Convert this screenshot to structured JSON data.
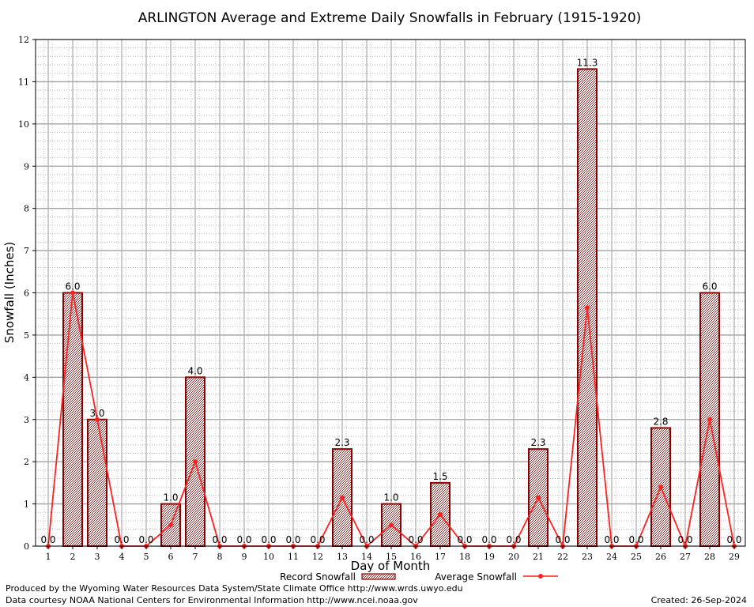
{
  "chart_data": {
    "type": "bar",
    "title": "ARLINGTON Average and Extreme Daily Snowfalls in February (1915-1920)",
    "xlabel": "Day of Month",
    "ylabel": "Snowfall (Inches)",
    "ylim": [
      0,
      12
    ],
    "yticks": [
      "0",
      "1",
      "2",
      "3",
      "4",
      "5",
      "6",
      "7",
      "8",
      "9",
      "10",
      "11",
      "12"
    ],
    "grid": true,
    "categories": [
      "1",
      "2",
      "3",
      "4",
      "5",
      "6",
      "7",
      "8",
      "9",
      "10",
      "11",
      "12",
      "13",
      "14",
      "15",
      "16",
      "17",
      "18",
      "19",
      "20",
      "21",
      "22",
      "23",
      "24",
      "25",
      "26",
      "27",
      "28",
      "29"
    ],
    "series": [
      {
        "name": "Record Snowfall",
        "type": "bar",
        "color": "#8b0000",
        "values": [
          0,
          6,
          3,
          0,
          0,
          1,
          4,
          0,
          0,
          0,
          0,
          0,
          2.3,
          0,
          1,
          0,
          1.5,
          0,
          0,
          0,
          2.3,
          0,
          11.3,
          0,
          0,
          2.8,
          0,
          6,
          0
        ],
        "labels": [
          "0.0",
          "6.0",
          "3.0",
          "0.0",
          "0.0",
          "1.0",
          "4.0",
          "0.0",
          "0.0",
          "0.0",
          "0.0",
          "0.0",
          "2.3",
          "0.0",
          "1.0",
          "0.0",
          "1.5",
          "0.0",
          "0.0",
          "0.0",
          "2.3",
          "0.0",
          "11.3",
          "0.0",
          "0.0",
          "2.8",
          "0.0",
          "6.0",
          "0.0"
        ]
      },
      {
        "name": "Average Snowfall",
        "type": "line",
        "color": "#ff2020",
        "values": [
          0,
          6,
          3,
          0,
          0,
          0.5,
          2,
          0,
          0,
          0,
          0,
          0,
          1.15,
          0,
          0.5,
          0,
          0.75,
          0,
          0,
          0,
          1.15,
          0,
          5.65,
          0,
          0,
          1.4,
          0,
          3,
          0
        ]
      }
    ],
    "legend": "bottom-center"
  },
  "footer": {
    "producer": "Produced by the Wyoming Water Resources Data System/State Climate Office http://www.wrds.uwyo.edu",
    "courtesy": "Data courtesy NOAA National Centers for Environmental Information http://www.ncei.noaa.gov",
    "created": "Created:  26-Sep-2024"
  }
}
